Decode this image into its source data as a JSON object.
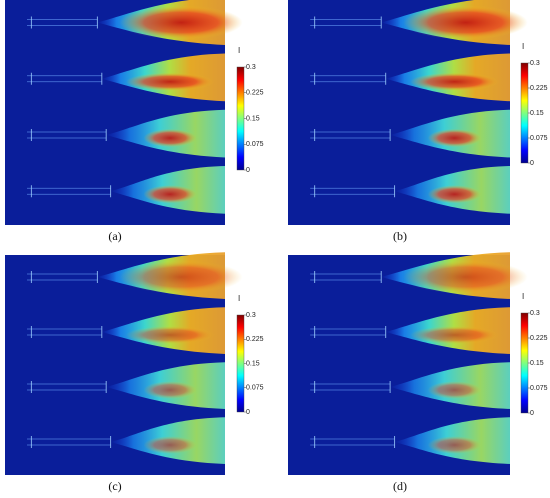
{
  "panels": [
    {
      "label": "(a)",
      "colorbar": {
        "title": "I",
        "ticks": [
          0.3,
          0.225,
          0.15,
          0.075,
          0
        ]
      }
    },
    {
      "label": "(b)",
      "colorbar": {
        "title": "I",
        "ticks": [
          0.3,
          0.225,
          0.15,
          0.075,
          0
        ]
      }
    },
    {
      "label": "(c)",
      "colorbar": {
        "title": "I",
        "ticks": [
          0.3,
          0.225,
          0.15,
          0.075,
          0
        ]
      }
    },
    {
      "label": "(d)",
      "colorbar": {
        "title": "I",
        "ticks": [
          0.3,
          0.225,
          0.15,
          0.075,
          0
        ]
      }
    }
  ]
}
